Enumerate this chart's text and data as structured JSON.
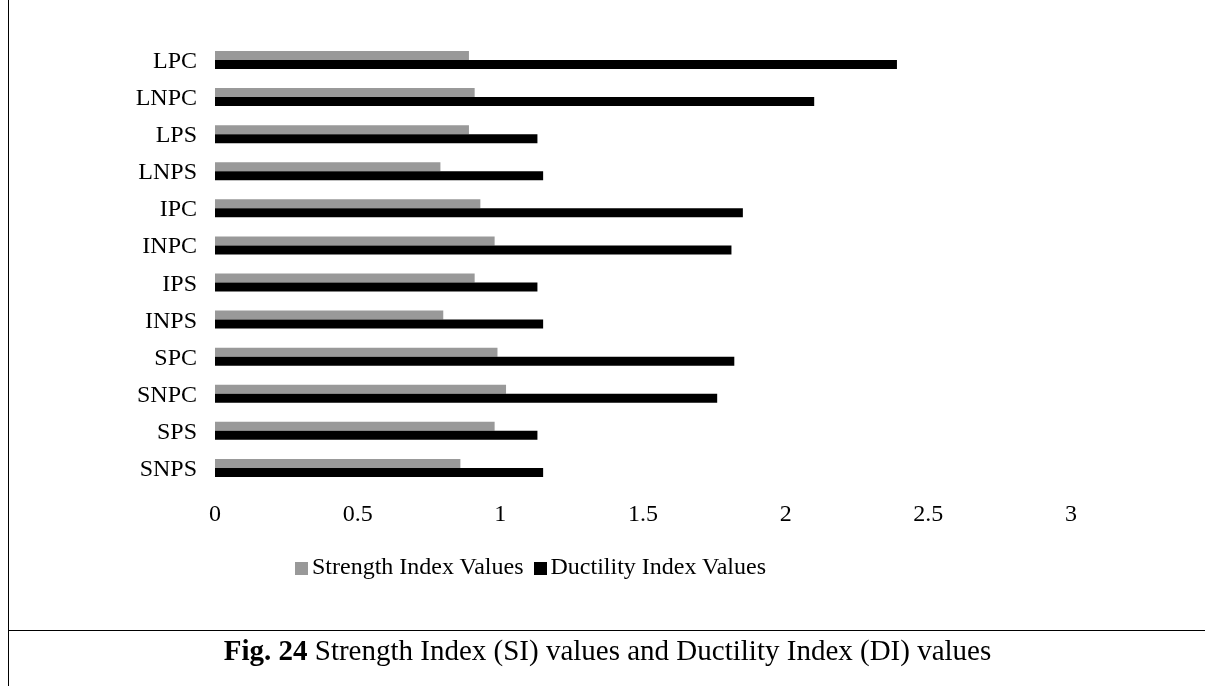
{
  "chart_data": {
    "type": "bar",
    "orientation": "horizontal",
    "categories": [
      "LPC",
      "LNPC",
      "LPS",
      "LNPS",
      "IPC",
      "INPC",
      "IPS",
      "INPS",
      "SPC",
      "SNPC",
      "SPS",
      "SNPS"
    ],
    "series": [
      {
        "name": "Strength Index Values",
        "color": "#999999",
        "values": [
          0.89,
          0.91,
          0.89,
          0.79,
          0.93,
          0.98,
          0.91,
          0.8,
          0.99,
          1.02,
          0.98,
          0.86
        ]
      },
      {
        "name": "Ductility Index Values",
        "color": "#000000",
        "values": [
          2.39,
          2.1,
          1.13,
          1.15,
          1.85,
          1.81,
          1.13,
          1.15,
          1.82,
          1.76,
          1.13,
          1.15
        ]
      }
    ],
    "xlim": [
      0,
      3
    ],
    "xticks": [
      0,
      0.5,
      1,
      1.5,
      2,
      2.5,
      3
    ],
    "legend": "bottom",
    "annotations": [
      "Fig. 24",
      "Strength Index (SI) values and Ductility Index (DI) values"
    ]
  }
}
